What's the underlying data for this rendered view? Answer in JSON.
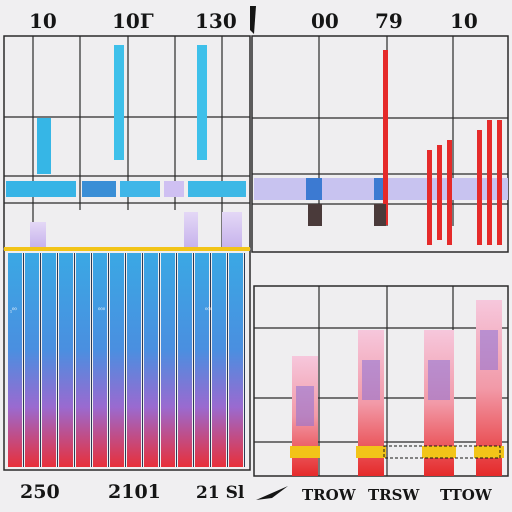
{
  "colors": {
    "background": "#f0eff1",
    "grid": "#2a2a2a",
    "cyan": "#35b9e6",
    "blue": "#3a7fd0",
    "purple": "#8a6fd6",
    "lavender": "#cdbcf0",
    "pink": "#f1a0c8",
    "red": "#e52a2a",
    "orange": "#f07a20",
    "yellow": "#f2c418",
    "dark": "#151515"
  },
  "chart_data": [
    {
      "type": "bar",
      "panel": "top-left",
      "top_tick_labels": [
        "10",
        "10Г",
        "130"
      ],
      "series": [
        {
          "color_key": "cyan",
          "x": [
            42,
            118,
            202
          ],
          "y_top": [
            118,
            45,
            45
          ],
          "y_bottom": [
            173,
            160,
            160
          ]
        }
      ],
      "strip": {
        "color_keys": [
          "cyan",
          "blue",
          "cyan",
          "lavender",
          "cyan"
        ]
      }
    },
    {
      "type": "bar",
      "panel": "top-right",
      "top_tick_labels": [
        "00",
        "79",
        "10"
      ],
      "series": [
        {
          "color_key": "red",
          "x": [
            383,
            427,
            437,
            447,
            477,
            487,
            497
          ],
          "y_top": [
            50,
            150,
            145,
            140,
            130,
            120,
            120
          ],
          "y_bottom": [
            225,
            245,
            240,
            245,
            245,
            245,
            245
          ]
        }
      ],
      "strip": {
        "color_keys": [
          "lavender",
          "blue",
          "lavender"
        ]
      }
    },
    {
      "type": "bar",
      "panel": "bottom-left",
      "bottom_tick_labels": [
        "250",
        "2101",
        "21 Sl"
      ],
      "series": [
        {
          "color_key": "cyan",
          "gradient_to": "red",
          "count": 14
        }
      ],
      "series_labels": [
        "₁⁰⁰",
        "⁰⁰⁰",
        "⁰⁰⁰"
      ]
    },
    {
      "type": "bar",
      "panel": "bottom-right",
      "bottom_tick_labels": [
        "TROW",
        "TRSW",
        "TTOW"
      ],
      "series": [
        {
          "color_key": "red",
          "base_colors": [
            "yellow",
            "orange"
          ],
          "count": 6
        }
      ]
    }
  ]
}
